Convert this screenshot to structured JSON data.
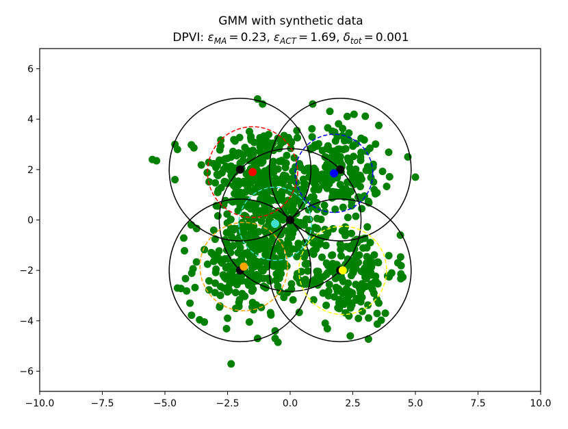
{
  "chart_data": {
    "type": "scatter",
    "title": "GMM with synthetic data",
    "subtitle": {
      "prefix": "DPVI: ",
      "eps_symbol": "ε",
      "eps_ma_sub": "MA",
      "eps_ma_value": "0.23",
      "eps_act_sub": "ACT",
      "eps_act_value": "1.69",
      "delta_symbol": "δ",
      "delta_sub": "tot",
      "delta_value": "0.001",
      "equals": "=",
      "separator": ","
    },
    "xlabel": "",
    "ylabel": "",
    "xlim": [
      -10.0,
      10.0
    ],
    "ylim": [
      -6.8,
      6.8
    ],
    "xticks": [
      {
        "value": -10.0,
        "label": "−10.0"
      },
      {
        "value": -7.5,
        "label": "−7.5"
      },
      {
        "value": -5.0,
        "label": "−5.0"
      },
      {
        "value": -2.5,
        "label": "−2.5"
      },
      {
        "value": 0.0,
        "label": "0.0"
      },
      {
        "value": 2.5,
        "label": "2.5"
      },
      {
        "value": 5.0,
        "label": "5.0"
      },
      {
        "value": 7.5,
        "label": "7.5"
      },
      {
        "value": 10.0,
        "label": "10.0"
      }
    ],
    "yticks": [
      {
        "value": 6,
        "label": "6"
      },
      {
        "value": 4,
        "label": "4"
      },
      {
        "value": 2,
        "label": "2"
      },
      {
        "value": 0,
        "label": "0"
      },
      {
        "value": -2,
        "label": "−2"
      },
      {
        "value": -4,
        "label": "−4"
      },
      {
        "value": -6,
        "label": "−6"
      }
    ],
    "grid": false,
    "legend": "none",
    "synthetic_points": {
      "color": "#008000",
      "approx_count": 1000,
      "clusters": [
        {
          "center": [
            -1.5,
            1.9
          ],
          "spread": 0.95,
          "count": 200
        },
        {
          "center": [
            1.7,
            1.9
          ],
          "spread": 0.95,
          "count": 200
        },
        {
          "center": [
            -0.5,
            -0.15
          ],
          "spread": 0.9,
          "count": 200
        },
        {
          "center": [
            -1.85,
            -1.85
          ],
          "spread": 1.0,
          "count": 200
        },
        {
          "center": [
            2.2,
            -2.1
          ],
          "spread": 1.0,
          "count": 200
        }
      ],
      "outliers": [
        [
          -5.5,
          2.4
        ],
        [
          -4.6,
          3.0
        ],
        [
          -4.5,
          2.8
        ],
        [
          -4.6,
          1.6
        ],
        [
          -4.5,
          -2.7
        ],
        [
          -4.0,
          -3.3
        ],
        [
          -2.5,
          -3.9
        ],
        [
          -1.3,
          -4.7
        ],
        [
          -0.6,
          -4.4
        ],
        [
          -0.6,
          -4.7
        ],
        [
          2.4,
          -4.6
        ],
        [
          3.8,
          -3.7
        ],
        [
          4.7,
          2.5
        ],
        [
          5.0,
          1.7
        ],
        [
          -1.3,
          4.8
        ],
        [
          -1.1,
          4.6
        ],
        [
          0.9,
          4.6
        ],
        [
          1.4,
          -4.1
        ],
        [
          4.4,
          -0.6
        ],
        [
          4.3,
          -1.7
        ]
      ]
    },
    "true_components": {
      "means": [
        [
          -2,
          2
        ],
        [
          2,
          2
        ],
        [
          0,
          0
        ],
        [
          -2,
          -2
        ],
        [
          2,
          -2
        ]
      ],
      "radius": 2.83,
      "circle_color": "#000000",
      "mean_color": "#000000"
    },
    "estimated_components": [
      {
        "mean": [
          -1.5,
          1.9
        ],
        "radius": 1.8,
        "color": "#ff0000"
      },
      {
        "mean": [
          1.75,
          1.85
        ],
        "radius": 1.55,
        "color": "#0000ff"
      },
      {
        "mean": [
          -0.6,
          -0.15
        ],
        "radius": 1.45,
        "color": "#40e0d0"
      },
      {
        "mean": [
          -1.85,
          -1.85
        ],
        "radius": 1.75,
        "color": "#ffa500"
      },
      {
        "mean": [
          2.1,
          -2.0
        ],
        "radius": 1.75,
        "color": "#ffff00"
      }
    ]
  }
}
